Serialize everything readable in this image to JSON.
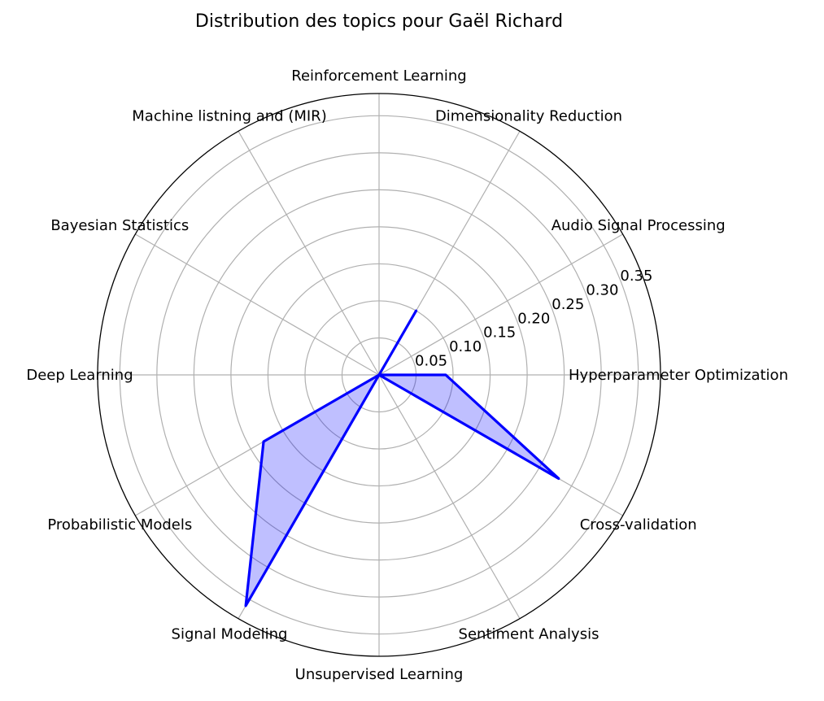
{
  "chart_data": {
    "type": "radar",
    "title": "Distribution des topics pour Gaël Richard",
    "categories": [
      "Hyperparameter Optimization",
      "Audio Signal Processing",
      "Dimensionality Reduction",
      "Reinforcement Learning",
      "Machine listning and (MIR)",
      "Bayesian Statistics",
      "Deep Learning",
      "Probabilistic Models",
      "Signal Modeling",
      "Unsupervised Learning",
      "Sentiment Analysis",
      "Cross-validation"
    ],
    "series": [
      {
        "values": [
          0.09,
          0.0,
          0.1,
          0.0,
          0.0,
          0.0,
          0.0,
          0.18,
          0.36,
          0.0,
          0.0,
          0.28
        ],
        "color": "#0000ff",
        "fill": "#0000ff",
        "fill_opacity": 0.25
      }
    ],
    "r_ticks": [
      "0.05",
      "0.10",
      "0.15",
      "0.20",
      "0.25",
      "0.30",
      "0.35"
    ],
    "rlim": [
      0,
      0.38
    ],
    "grid": true,
    "colors": {
      "grid": "#b0b0b0",
      "line": "#0000ff"
    }
  }
}
